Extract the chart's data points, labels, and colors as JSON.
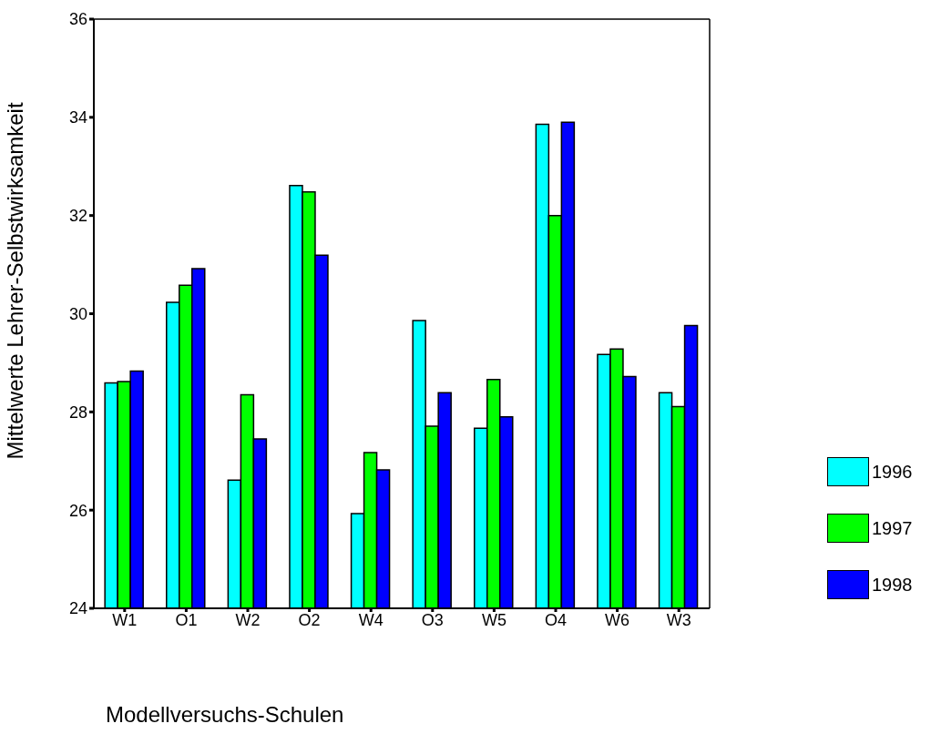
{
  "chart_data": {
    "type": "bar",
    "xlabel": "Modellversuchs-Schulen",
    "ylabel": "Mittelwerte Lehrer-Selbstwirksamkeit",
    "categories": [
      "W1",
      "O1",
      "W2",
      "O2",
      "W4",
      "O3",
      "W5",
      "O4",
      "W6",
      "W3"
    ],
    "series": [
      {
        "name": "1996",
        "color": "#00ffff",
        "values": [
          28.59,
          30.23,
          26.61,
          32.61,
          25.93,
          29.86,
          27.67,
          33.86,
          29.17,
          28.39
        ]
      },
      {
        "name": "1997",
        "color": "#00ff00",
        "values": [
          28.62,
          30.58,
          28.35,
          32.48,
          27.17,
          27.71,
          28.66,
          32.0,
          29.28,
          28.11
        ]
      },
      {
        "name": "1998",
        "color": "#0000ff",
        "values": [
          28.83,
          30.92,
          27.45,
          31.19,
          26.82,
          28.39,
          27.9,
          33.9,
          28.72,
          29.76
        ]
      }
    ],
    "ylim": [
      24,
      36
    ],
    "yticks": [
      24,
      26,
      28,
      30,
      32,
      34,
      36
    ],
    "grid": false,
    "legend": "right"
  }
}
